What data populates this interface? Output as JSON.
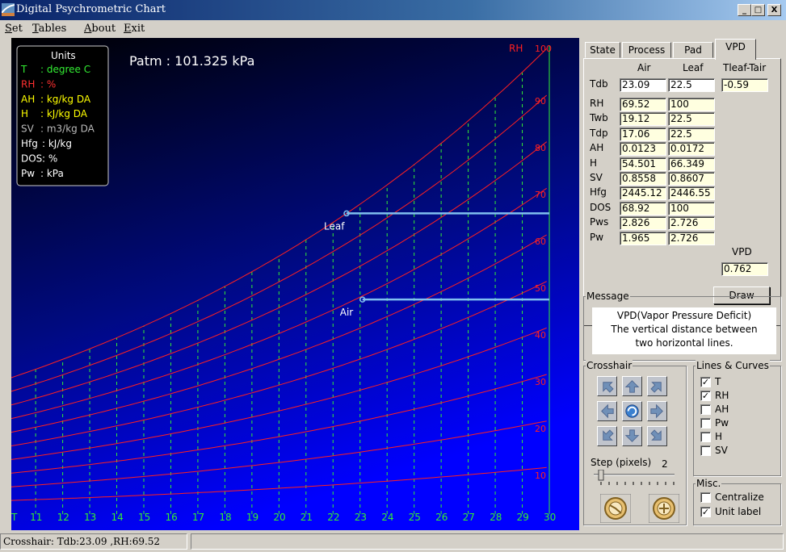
{
  "window": {
    "title": "Digital Psychrometric Chart",
    "min_label": "_",
    "max_label": "□",
    "close_label": "X"
  },
  "menu": [
    {
      "label": "Set",
      "accel": "S"
    },
    {
      "label": "Tables",
      "accel": "T"
    },
    {
      "label": "About",
      "accel": "A"
    },
    {
      "label": "Exit",
      "accel": "E"
    }
  ],
  "chart_data": {
    "type": "line",
    "title": "Patm : 101.325 kPa",
    "rh_axis_label": "RH",
    "x_axis_label": "T",
    "x_ticks": [
      "11",
      "12",
      "13",
      "14",
      "15",
      "16",
      "17",
      "18",
      "19",
      "20",
      "21",
      "22",
      "23",
      "24",
      "25",
      "26",
      "27",
      "28",
      "29",
      "30"
    ],
    "xlim": [
      10.1,
      30
    ],
    "rh_curves": [
      10,
      20,
      30,
      40,
      50,
      60,
      70,
      80,
      90,
      100
    ],
    "series": [
      {
        "name": "Leaf",
        "x": [
          22.5,
          30
        ],
        "y": [
          22.5,
          22.5
        ]
      },
      {
        "name": "Air",
        "x": [
          23.09,
          30
        ],
        "y": [
          17.06,
          17.06
        ]
      }
    ],
    "colors": {
      "background_top": "#000000",
      "background_bottom": "#0000ff",
      "rh_line": "#ff2020",
      "t_line": "#33ee33",
      "state_line": "#80c0f0"
    },
    "units_legend": {
      "title": "Units",
      "rows": [
        {
          "key": "T",
          "text": ": degree C",
          "color": "#33ee33"
        },
        {
          "key": "RH",
          "text": ": %",
          "color": "#ff3030"
        },
        {
          "key": "AH",
          "text": ": kg/kg DA",
          "color": "#ffff00"
        },
        {
          "key": "H",
          "text": ": kJ/kg DA",
          "color": "#ffff00"
        },
        {
          "key": "SV",
          "text": ": m3/kg DA",
          "color": "#bbbbbb"
        },
        {
          "key": "Hfg",
          "text": ": kJ/kg",
          "color": "#ffffff"
        },
        {
          "key": "DOS",
          "text": ": %",
          "color": "#ffffff"
        },
        {
          "key": "Pw",
          "text": ": kPa",
          "color": "#ffffff"
        }
      ]
    }
  },
  "tabs": [
    {
      "label": "State",
      "active": false
    },
    {
      "label": "Process",
      "active": false
    },
    {
      "label": "Pad",
      "active": false
    },
    {
      "label": "VPD",
      "active": true
    }
  ],
  "vpd": {
    "col_air": "Air",
    "col_leaf": "Leaf",
    "col_diff": "Tleaf-Tair",
    "tdb": {
      "label": "Tdb",
      "air": "23.09",
      "leaf": "22.5",
      "diff": "-0.59"
    },
    "rows": [
      {
        "label": "RH",
        "air": "69.52",
        "leaf": "100"
      },
      {
        "label": "Twb",
        "air": "19.12",
        "leaf": "22.5"
      },
      {
        "label": "Tdp",
        "air": "17.06",
        "leaf": "22.5"
      },
      {
        "label": "AH",
        "air": "0.0123",
        "leaf": "0.0172"
      },
      {
        "label": "H",
        "air": "54.501",
        "leaf": "66.349"
      },
      {
        "label": "SV",
        "air": "0.8558",
        "leaf": "0.8607"
      },
      {
        "label": "Hfg",
        "air": "2445.12",
        "leaf": "2446.55"
      },
      {
        "label": "DOS",
        "air": "68.92",
        "leaf": "100"
      },
      {
        "label": "Pws",
        "air": "2.826",
        "leaf": "2.726"
      },
      {
        "label": "Pw",
        "air": "1.965",
        "leaf": "2.726"
      }
    ],
    "vpd_label": "VPD",
    "vpd_value": "0.762",
    "draw_label": "Draw"
  },
  "message": {
    "title": "Message",
    "lines": [
      "VPD(Vapor Pressure Deficit)",
      "The vertical distance between",
      "two horizontal lines."
    ]
  },
  "crosshair": {
    "title": "Crosshair",
    "step_label": "Step (pixels)",
    "step_value": "2"
  },
  "lines_curves": {
    "title": "Lines & Curves",
    "items": [
      {
        "label": "T",
        "checked": true
      },
      {
        "label": "RH",
        "checked": true
      },
      {
        "label": "AH",
        "checked": false
      },
      {
        "label": "Pw",
        "checked": false
      },
      {
        "label": "H",
        "checked": false
      },
      {
        "label": "SV",
        "checked": false
      }
    ]
  },
  "misc": {
    "title": "Misc.",
    "items": [
      {
        "label": "Centralize",
        "checked": false
      },
      {
        "label": "Unit label",
        "checked": true
      }
    ]
  },
  "status": {
    "text": "Crosshair: Tdb:23.09 ,RH:69.52"
  }
}
